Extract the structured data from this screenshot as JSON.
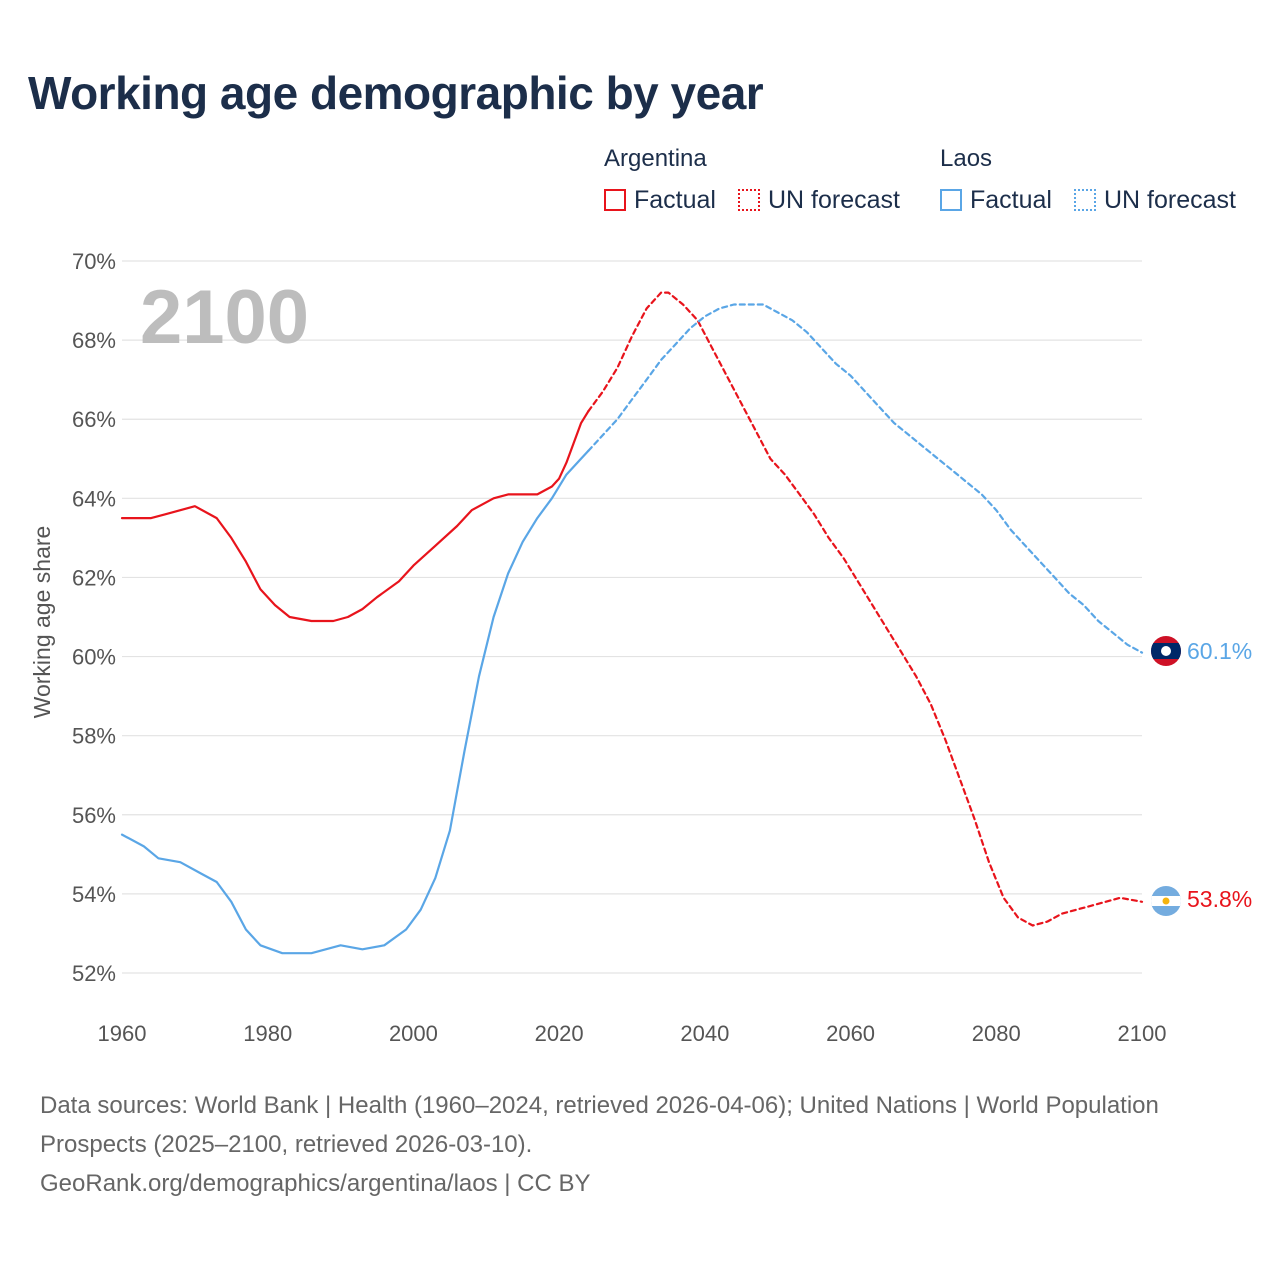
{
  "title": "Working age demographic by year",
  "year_overlay": "2100",
  "legend": {
    "groups": [
      {
        "name": "Argentina",
        "color": "#e8141c",
        "factual": "Factual",
        "forecast": "UN forecast"
      },
      {
        "name": "Laos",
        "color": "#5aa6e6",
        "factual": "Factual",
        "forecast": "UN forecast"
      }
    ]
  },
  "end_labels": {
    "laos": "60.1%",
    "argentina": "53.8%"
  },
  "source": {
    "line1": "Data sources: World Bank | Health (1960–2024, retrieved 2026-04-06); United Nations | World Population Prospects (2025–2100, retrieved 2026-03-10).",
    "line2": "GeoRank.org/demographics/argentina/laos | CC BY"
  },
  "chart_data": {
    "type": "line",
    "title": "Working age demographic by year",
    "xlabel": "",
    "ylabel": "Working age share",
    "xlim": [
      1960,
      2100
    ],
    "ylim": [
      52,
      70
    ],
    "x_ticks": [
      1960,
      1980,
      2000,
      2020,
      2040,
      2060,
      2080,
      2100
    ],
    "x_tick_labels": [
      "1960",
      "1980",
      "2000",
      "2020",
      "2040",
      "2060",
      "2080",
      "2100"
    ],
    "y_ticks": [
      52,
      54,
      56,
      58,
      60,
      62,
      64,
      66,
      68,
      70
    ],
    "y_tick_labels": [
      "52%",
      "54%",
      "56%",
      "58%",
      "60%",
      "62%",
      "64%",
      "66%",
      "68%",
      "70%"
    ],
    "grid": true,
    "series": [
      {
        "name": "Argentina",
        "kind": "Factual",
        "color": "#e8141c",
        "dashed": false,
        "points": [
          [
            1960,
            63.5
          ],
          [
            1964,
            63.5
          ],
          [
            1966,
            63.6
          ],
          [
            1968,
            63.7
          ],
          [
            1970,
            63.8
          ],
          [
            1973,
            63.5
          ],
          [
            1975,
            63.0
          ],
          [
            1977,
            62.4
          ],
          [
            1979,
            61.7
          ],
          [
            1981,
            61.3
          ],
          [
            1983,
            61.0
          ],
          [
            1986,
            60.9
          ],
          [
            1989,
            60.9
          ],
          [
            1991,
            61.0
          ],
          [
            1993,
            61.2
          ],
          [
            1995,
            61.5
          ],
          [
            1998,
            61.9
          ],
          [
            2000,
            62.3
          ],
          [
            2003,
            62.8
          ],
          [
            2006,
            63.3
          ],
          [
            2008,
            63.7
          ],
          [
            2011,
            64.0
          ],
          [
            2013,
            64.1
          ],
          [
            2017,
            64.1
          ],
          [
            2019,
            64.3
          ],
          [
            2020,
            64.5
          ],
          [
            2021,
            64.9
          ],
          [
            2022,
            65.4
          ],
          [
            2023,
            65.9
          ],
          [
            2024,
            66.2
          ]
        ]
      },
      {
        "name": "Argentina",
        "kind": "UN forecast",
        "color": "#e8141c",
        "dashed": true,
        "points": [
          [
            2024,
            66.2
          ],
          [
            2026,
            66.7
          ],
          [
            2028,
            67.3
          ],
          [
            2030,
            68.1
          ],
          [
            2032,
            68.8
          ],
          [
            2034,
            69.2
          ],
          [
            2035,
            69.2
          ],
          [
            2037,
            68.9
          ],
          [
            2039,
            68.5
          ],
          [
            2041,
            67.8
          ],
          [
            2043,
            67.1
          ],
          [
            2045,
            66.4
          ],
          [
            2047,
            65.7
          ],
          [
            2049,
            65.0
          ],
          [
            2051,
            64.6
          ],
          [
            2053,
            64.1
          ],
          [
            2055,
            63.6
          ],
          [
            2057,
            63.0
          ],
          [
            2059,
            62.5
          ],
          [
            2061,
            61.9
          ],
          [
            2063,
            61.3
          ],
          [
            2065,
            60.7
          ],
          [
            2067,
            60.1
          ],
          [
            2069,
            59.5
          ],
          [
            2071,
            58.8
          ],
          [
            2073,
            57.9
          ],
          [
            2075,
            56.9
          ],
          [
            2077,
            55.9
          ],
          [
            2079,
            54.8
          ],
          [
            2081,
            53.9
          ],
          [
            2083,
            53.4
          ],
          [
            2085,
            53.2
          ],
          [
            2087,
            53.3
          ],
          [
            2089,
            53.5
          ],
          [
            2091,
            53.6
          ],
          [
            2093,
            53.7
          ],
          [
            2095,
            53.8
          ],
          [
            2097,
            53.9
          ],
          [
            2100,
            53.8
          ]
        ]
      },
      {
        "name": "Laos",
        "kind": "Factual",
        "color": "#5aa6e6",
        "dashed": false,
        "points": [
          [
            1960,
            55.5
          ],
          [
            1963,
            55.2
          ],
          [
            1965,
            54.9
          ],
          [
            1968,
            54.8
          ],
          [
            1971,
            54.5
          ],
          [
            1973,
            54.3
          ],
          [
            1975,
            53.8
          ],
          [
            1977,
            53.1
          ],
          [
            1979,
            52.7
          ],
          [
            1982,
            52.5
          ],
          [
            1986,
            52.5
          ],
          [
            1990,
            52.7
          ],
          [
            1993,
            52.6
          ],
          [
            1996,
            52.7
          ],
          [
            1999,
            53.1
          ],
          [
            2001,
            53.6
          ],
          [
            2003,
            54.4
          ],
          [
            2005,
            55.6
          ],
          [
            2007,
            57.6
          ],
          [
            2009,
            59.5
          ],
          [
            2011,
            61.0
          ],
          [
            2013,
            62.1
          ],
          [
            2015,
            62.9
          ],
          [
            2017,
            63.5
          ],
          [
            2019,
            64.0
          ],
          [
            2021,
            64.6
          ],
          [
            2023,
            65.0
          ],
          [
            2024,
            65.2
          ]
        ]
      },
      {
        "name": "Laos",
        "kind": "UN forecast",
        "color": "#5aa6e6",
        "dashed": true,
        "points": [
          [
            2024,
            65.2
          ],
          [
            2026,
            65.6
          ],
          [
            2028,
            66.0
          ],
          [
            2030,
            66.5
          ],
          [
            2032,
            67.0
          ],
          [
            2034,
            67.5
          ],
          [
            2036,
            67.9
          ],
          [
            2038,
            68.3
          ],
          [
            2040,
            68.6
          ],
          [
            2042,
            68.8
          ],
          [
            2044,
            68.9
          ],
          [
            2048,
            68.9
          ],
          [
            2050,
            68.7
          ],
          [
            2052,
            68.5
          ],
          [
            2054,
            68.2
          ],
          [
            2056,
            67.8
          ],
          [
            2058,
            67.4
          ],
          [
            2060,
            67.1
          ],
          [
            2062,
            66.7
          ],
          [
            2064,
            66.3
          ],
          [
            2066,
            65.9
          ],
          [
            2068,
            65.6
          ],
          [
            2070,
            65.3
          ],
          [
            2072,
            65.0
          ],
          [
            2074,
            64.7
          ],
          [
            2076,
            64.4
          ],
          [
            2078,
            64.1
          ],
          [
            2080,
            63.7
          ],
          [
            2082,
            63.2
          ],
          [
            2084,
            62.8
          ],
          [
            2086,
            62.4
          ],
          [
            2088,
            62.0
          ],
          [
            2090,
            61.6
          ],
          [
            2092,
            61.3
          ],
          [
            2094,
            60.9
          ],
          [
            2096,
            60.6
          ],
          [
            2098,
            60.3
          ],
          [
            2100,
            60.1
          ]
        ]
      }
    ],
    "end_values": [
      {
        "country": "Laos",
        "value": 60.1
      },
      {
        "country": "Argentina",
        "value": 53.8
      }
    ]
  }
}
